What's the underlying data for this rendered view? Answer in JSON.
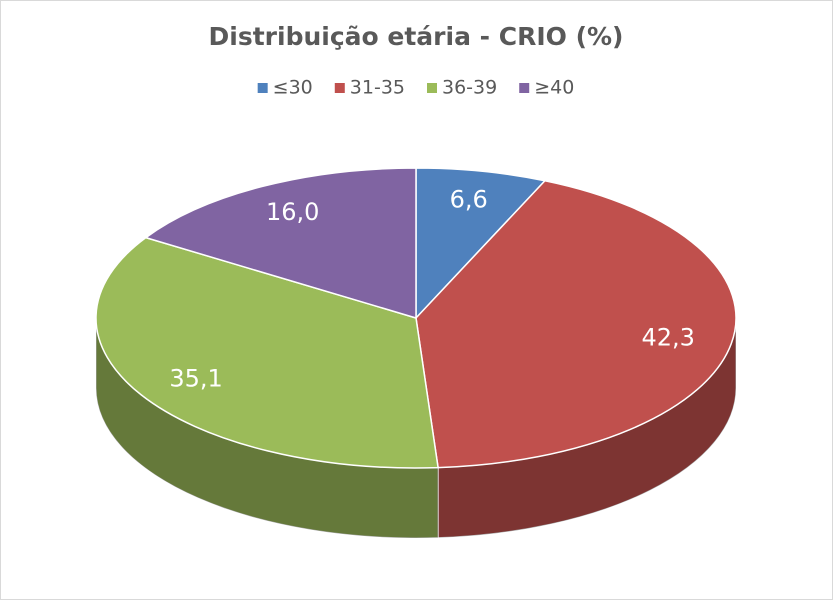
{
  "chart_data": {
    "type": "pie",
    "title": "Distribuição etária - CRIO (%)",
    "categories": [
      "≤30",
      "31-35",
      "36-39",
      "≥40"
    ],
    "values": [
      6.6,
      42.3,
      35.1,
      16.0
    ],
    "value_labels": [
      "6,6",
      "42,3",
      "35,1",
      "16,0"
    ],
    "colors": [
      "#4f81bd",
      "#c0504d",
      "#9bbb59",
      "#8064a2"
    ],
    "legend": "top"
  }
}
